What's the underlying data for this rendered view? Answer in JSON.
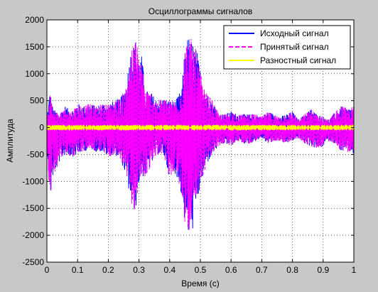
{
  "chart_data": {
    "type": "line",
    "title": "Осциллограммы сигналов",
    "xlabel": "Время (с)",
    "ylabel": "Амплитуда",
    "xlim": [
      0,
      1
    ],
    "ylim": [
      -2500,
      2000
    ],
    "xticks": [
      0,
      0.1,
      0.2,
      0.3,
      0.4,
      0.5,
      0.6,
      0.7,
      0.8,
      0.9,
      1
    ],
    "xtick_labels": [
      "0",
      "0.1",
      "0.2",
      "0.3",
      "0.4",
      "0.5",
      "0.6",
      "0.7",
      "0.8",
      "0.9",
      "1"
    ],
    "yticks": [
      -2500,
      -2000,
      -1500,
      -1000,
      -500,
      0,
      500,
      1000,
      1500,
      2000
    ],
    "ytick_labels": [
      "-2500",
      "-2000",
      "-1500",
      "-1000",
      "-500",
      "0",
      "500",
      "1000",
      "1500",
      "2000"
    ],
    "grid": true,
    "legend_position": "top-right",
    "series": [
      {
        "name": "Исходный сигнал",
        "color": "#0000ff",
        "style": "solid",
        "envelope_x": [
          0,
          0.01,
          0.02,
          0.04,
          0.06,
          0.08,
          0.1,
          0.12,
          0.14,
          0.16,
          0.18,
          0.2,
          0.22,
          0.24,
          0.26,
          0.27,
          0.28,
          0.29,
          0.3,
          0.31,
          0.32,
          0.34,
          0.36,
          0.38,
          0.4,
          0.42,
          0.44,
          0.45,
          0.46,
          0.47,
          0.48,
          0.49,
          0.5,
          0.51,
          0.52,
          0.54,
          0.56,
          0.58,
          0.6,
          0.62,
          0.64,
          0.66,
          0.68,
          0.7,
          0.72,
          0.74,
          0.76,
          0.78,
          0.8,
          0.82,
          0.84,
          0.86,
          0.88,
          0.9,
          0.92,
          0.94,
          0.96,
          0.98,
          1.0
        ],
        "envelope_max": [
          200,
          700,
          350,
          250,
          400,
          300,
          450,
          400,
          450,
          400,
          450,
          450,
          500,
          550,
          850,
          1400,
          1500,
          1650,
          1300,
          1350,
          700,
          650,
          500,
          550,
          500,
          500,
          750,
          1550,
          1700,
          1650,
          1550,
          1400,
          1050,
          750,
          650,
          500,
          250,
          250,
          300,
          250,
          250,
          250,
          250,
          200,
          300,
          250,
          200,
          250,
          300,
          150,
          250,
          350,
          250,
          200,
          150,
          300,
          400,
          350,
          400
        ],
        "envelope_min": [
          -300,
          -1400,
          -900,
          -650,
          -500,
          -550,
          -500,
          -450,
          -400,
          -450,
          -450,
          -550,
          -500,
          -600,
          -950,
          -1300,
          -1600,
          -1500,
          -1050,
          -900,
          -950,
          -700,
          -500,
          -500,
          -950,
          -850,
          -1300,
          -1850,
          -2050,
          -1950,
          -1850,
          -1450,
          -1100,
          -900,
          -700,
          -500,
          -350,
          -300,
          -350,
          -250,
          -300,
          -300,
          -250,
          -200,
          -300,
          -250,
          -250,
          -300,
          -250,
          -200,
          -300,
          -350,
          -400,
          -350,
          -250,
          -300,
          -450,
          -450,
          -500
        ]
      },
      {
        "name": "Принятый сигнал",
        "color": "#ff00ff",
        "style": "dashed",
        "envelope_x": [
          0,
          0.01,
          0.02,
          0.04,
          0.06,
          0.08,
          0.1,
          0.12,
          0.14,
          0.16,
          0.18,
          0.2,
          0.22,
          0.24,
          0.26,
          0.27,
          0.28,
          0.29,
          0.3,
          0.31,
          0.32,
          0.34,
          0.36,
          0.38,
          0.4,
          0.42,
          0.44,
          0.45,
          0.46,
          0.47,
          0.48,
          0.49,
          0.5,
          0.51,
          0.52,
          0.54,
          0.56,
          0.58,
          0.6,
          0.62,
          0.64,
          0.66,
          0.68,
          0.7,
          0.72,
          0.74,
          0.76,
          0.78,
          0.8,
          0.82,
          0.84,
          0.86,
          0.88,
          0.9,
          0.92,
          0.94,
          0.96,
          0.98,
          1.0
        ],
        "envelope_max": [
          200,
          650,
          350,
          250,
          400,
          300,
          450,
          400,
          450,
          400,
          450,
          450,
          500,
          550,
          800,
          1400,
          1500,
          1700,
          1300,
          1350,
          700,
          650,
          500,
          550,
          500,
          500,
          750,
          1500,
          1700,
          1650,
          1550,
          1350,
          1050,
          750,
          650,
          500,
          250,
          250,
          300,
          250,
          250,
          250,
          250,
          200,
          300,
          250,
          200,
          250,
          300,
          150,
          250,
          350,
          250,
          200,
          150,
          300,
          400,
          350,
          400
        ],
        "envelope_min": [
          -300,
          -1350,
          -900,
          -650,
          -500,
          -550,
          -500,
          -450,
          -400,
          -450,
          -450,
          -550,
          -500,
          -600,
          -950,
          -1300,
          -1550,
          -1500,
          -1050,
          -900,
          -950,
          -700,
          -500,
          -500,
          -950,
          -850,
          -1300,
          -1800,
          -1900,
          -1950,
          -1800,
          -1450,
          -1100,
          -900,
          -700,
          -500,
          -350,
          -300,
          -350,
          -250,
          -300,
          -300,
          -250,
          -200,
          -300,
          -250,
          -250,
          -300,
          -250,
          -200,
          -300,
          -350,
          -400,
          -350,
          -250,
          -300,
          -450,
          -450,
          -500
        ]
      },
      {
        "name": "Разностный сигнал",
        "color": "#ffff00",
        "style": "solid",
        "envelope_x": [
          0,
          1
        ],
        "envelope_max": [
          10,
          10
        ],
        "envelope_min": [
          -10,
          -10
        ]
      }
    ]
  }
}
